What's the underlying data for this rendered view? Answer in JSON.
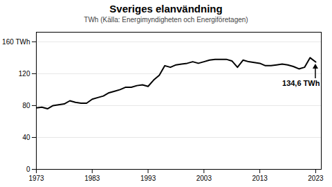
{
  "chart_data": {
    "type": "line",
    "title": "Sveriges elanvändning",
    "subtitle": "TWh (Källa: Energimyndigheten och Energiföretagen)",
    "x": [
      1973,
      1974,
      1975,
      1976,
      1977,
      1978,
      1979,
      1980,
      1981,
      1982,
      1983,
      1984,
      1985,
      1986,
      1987,
      1988,
      1989,
      1990,
      1991,
      1992,
      1993,
      1994,
      1995,
      1996,
      1997,
      1998,
      1999,
      2000,
      2001,
      2002,
      2003,
      2004,
      2005,
      2006,
      2007,
      2008,
      2009,
      2010,
      2011,
      2012,
      2013,
      2014,
      2015,
      2016,
      2017,
      2018,
      2019,
      2020,
      2021,
      2022,
      2023
    ],
    "values": [
      77,
      78,
      76,
      80,
      81,
      82,
      86,
      84,
      83,
      83,
      88,
      90,
      92,
      96,
      98,
      100,
      103,
      103,
      105,
      106,
      104,
      112,
      118,
      130,
      128,
      131,
      132,
      133,
      135,
      133,
      135,
      137,
      138,
      138,
      138,
      136,
      128,
      137,
      135,
      134,
      133,
      130,
      130,
      131,
      132,
      131,
      129,
      126,
      128,
      140,
      134.6
    ],
    "xlim": [
      1973,
      2024
    ],
    "xticks": [
      1973,
      1983,
      1993,
      2003,
      2013,
      2023
    ],
    "ylim": [
      0,
      172
    ],
    "yticks": [
      0,
      40,
      80,
      120,
      {
        "value": 160,
        "label": "160 TWh"
      }
    ],
    "grid": true,
    "annotations": [
      {
        "text": "134,6 TWh",
        "x": 2023,
        "y": 134.6
      }
    ]
  }
}
